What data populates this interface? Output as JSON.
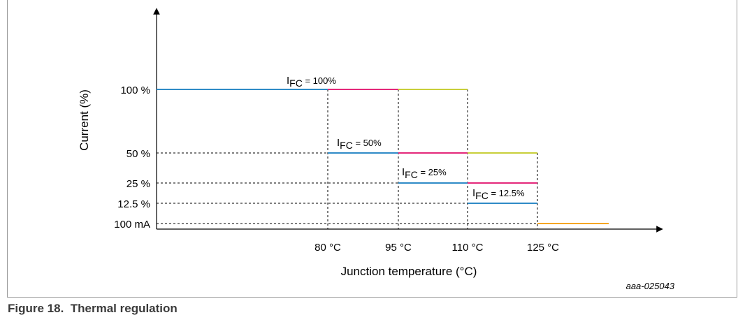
{
  "diagram": {
    "y_axis_label": "Current (%)",
    "x_axis_label": "Junction temperature  (°C)",
    "y_ticks": [
      {
        "label": "100 %",
        "value": 100
      },
      {
        "label": "50 %",
        "value": 50
      },
      {
        "label": "25 %",
        "value": 25
      },
      {
        "label": "12.5 %",
        "value": 12.5
      },
      {
        "label": "100 mA",
        "value": "100 mA"
      }
    ],
    "x_ticks": [
      {
        "label": "80 °C",
        "value": 80
      },
      {
        "label": "95 °C",
        "value": 95
      },
      {
        "label": "110 °C",
        "value": 110
      },
      {
        "label": "125 °C",
        "value": 125
      }
    ],
    "annotations": [
      {
        "main": "I",
        "sub": "FC",
        "rest": " = 100%"
      },
      {
        "main": "I",
        "sub": "FC",
        "rest": " = 50%"
      },
      {
        "main": "I",
        "sub": "FC",
        "rest": " = 25%"
      },
      {
        "main": "I",
        "sub": "FC",
        "rest": " = 12.5%"
      }
    ],
    "colors": {
      "blue": "#2f8bc7",
      "magenta": "#e4287a",
      "yellow_green": "#c8cf3a",
      "orange": "#f5a623",
      "axis": "#000000",
      "dash": "#000000"
    },
    "watermark": "aaa-025043"
  },
  "caption": {
    "figure_number": "Figure 18.",
    "title": "Thermal regulation"
  }
}
